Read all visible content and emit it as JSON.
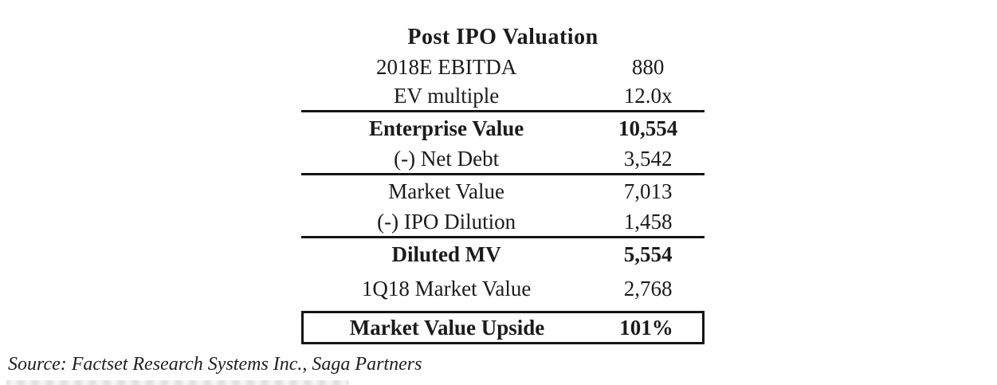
{
  "colors": {
    "text": "#1b1b1b",
    "rule": "#141414",
    "background": "#ffffff"
  },
  "table": {
    "title": "Post IPO Valuation",
    "rows": [
      {
        "label": "2018E EBITDA",
        "value": "880"
      },
      {
        "label": "EV multiple",
        "value": "12.0x"
      },
      {
        "label": "Enterprise Value",
        "value": "10,554"
      },
      {
        "label": "(-) Net Debt",
        "value": "3,542"
      },
      {
        "label": "Market Value",
        "value": "7,013"
      },
      {
        "label": "(-) IPO Dilution",
        "value": "1,458"
      },
      {
        "label": "Diluted MV",
        "value": "5,554"
      },
      {
        "label": "1Q18 Market Value",
        "value": "2,768"
      },
      {
        "label": "Market Value Upside",
        "value": "101%"
      }
    ]
  },
  "source": "Source: Factset Research Systems Inc., Saga Partners",
  "chart_data": {
    "type": "table",
    "title": "Post IPO Valuation",
    "categories": [
      "2018E EBITDA",
      "EV multiple",
      "Enterprise Value",
      "(-) Net Debt",
      "Market Value",
      "(-) IPO Dilution",
      "Diluted MV",
      "1Q18 Market Value",
      "Market Value Upside"
    ],
    "values": [
      "880",
      "12.0x",
      "10,554",
      "3,542",
      "7,013",
      "1,458",
      "5,554",
      "2,768",
      "101%"
    ]
  }
}
